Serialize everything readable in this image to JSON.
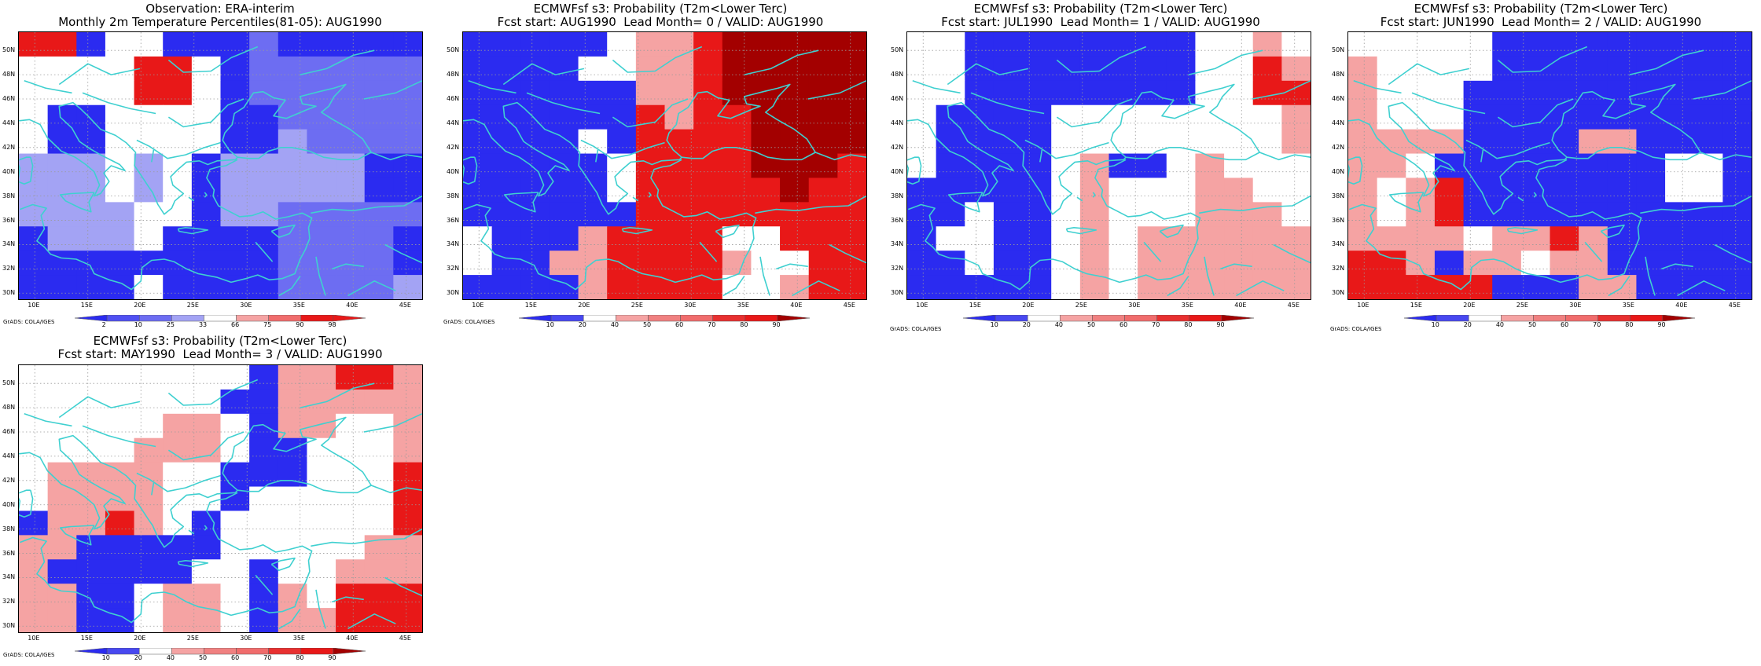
{
  "colors": {
    "coastline": "#3fd0d0",
    "grid": "#9a9a9a",
    "blue_strong": "#2b2bf0",
    "blue_mid": "#6d6df2",
    "blue_light": "#a3a3f4",
    "white": "#ffffff",
    "red_light": "#f5a3a3",
    "red_mid": "#f06c6c",
    "red_bright": "#e81818",
    "red_dark": "#a30000"
  },
  "icons": [
    "triangle-left-icon",
    "triangle-right-icon"
  ],
  "credit": "GrADS: COLA/IGES",
  "x_ticks": [
    "10E",
    "15E",
    "20E",
    "25E",
    "30E",
    "35E",
    "40E",
    "45E"
  ],
  "y_ticks": [
    "50N",
    "48N",
    "46N",
    "44N",
    "42N",
    "40N",
    "38N",
    "36N",
    "34N",
    "32N",
    "30N"
  ],
  "legend_obs": {
    "labels": [
      "2",
      "10",
      "25",
      "33",
      "66",
      "75",
      "90",
      "98"
    ],
    "colors": [
      "#2b2bf0",
      "#5050f2",
      "#6d6df2",
      "#a3a3f4",
      "#ffffff",
      "#f5a3a3",
      "#f06c6c",
      "#e81818",
      "#e81818"
    ]
  },
  "legend_prob": {
    "labels": [
      "10",
      "20",
      "40",
      "50",
      "60",
      "70",
      "80",
      "90"
    ],
    "colors": [
      "#2b2bf0",
      "#4848f0",
      "#ffffff",
      "#f5a3a3",
      "#f08080",
      "#f06c6c",
      "#e83030",
      "#e81818",
      "#a30000"
    ]
  },
  "panels": [
    {
      "id": "obs",
      "title1": "Observation: ERA-interim",
      "title2": "Monthly 2m Temperature Percentiles(81-05): AUG1990",
      "legend": "legend_obs",
      "grid": [
        "RRB00BBBMBBBBB",
        "0000RR0BMMMMMM",
        "0000RR0BMMMMMM",
        "0BB0000BBMMMMM",
        "0BB0000BBLMMMM",
        "LLL0L0BLLLLLBB",
        "LLL0L0BLLLLLBB",
        "LLLL00BLLMMMMM",
        "BLLL0BBBBMMMMB",
        "BBBBBBBBBMMMMB",
        "BBBB0BBBBMMMML"
      ]
    },
    {
      "id": "lead0",
      "title1": "ECMWFsf s3: Probability (T2m<Lower Terc)",
      "title2": "Fcst start: AUG1990  Lead Month= 0 / VALID: AUG1990",
      "legend": "legend_prob",
      "grid": [
        "BBBBB0rrRDDDDD",
        "BBBB00rrRDDDDD",
        "BBBBBBrrRDDDDD",
        "BBBBBBRrRRDDDD",
        "BBBB0BRRRRDDDD",
        "BBBBB0RRRRDDDR",
        "BBBBB0RRRRRDRR",
        "BBBBBBRRRRRRRR",
        "0BBBrRRRR00RRR",
        "0BBrrRRRRr00RR",
        "BBBBrRRRR00rRR"
      ]
    },
    {
      "id": "lead1",
      "title1": "ECMWFsf s3: Probability (T2m<Lower Terc)",
      "title2": "Fcst start: JUL1990  Lead Month= 1 / VALID: AUG1990",
      "legend": "legend_prob",
      "grid": [
        "00BBBBBBBB00r0",
        "00BBBBBBBB00Rr",
        "00BBBBBBBB00RR",
        "0BBBB00000000r",
        "0BBBB00000000r",
        "0BBBB0rBB0r000",
        "BBBBB0r000rr00",
        "BB0BB0r000rrr0",
        "B00BB0r0rrrrrr",
        "BB0BB0r0rrrrrr",
        "BBBBB0r0rrrrrr"
      ]
    },
    {
      "id": "lead2",
      "title1": "ECMWFsf s3: Probability (T2m<Lower Terc)",
      "title2": "Fcst start: JUN1990  Lead Month= 2 / VALID: AUG1990",
      "legend": "legend_prob",
      "grid": [
        "00000BBBBBBBBB",
        "r0000BBBBBBBBB",
        "r000BBBBBBBBBB",
        "r000BBBBBBBBBB",
        "rrrrBBBBrrBBBB",
        "rr0BBBBBBBB00B",
        "r0rRBBBBBBB00B",
        "r0rRBBBBBBBBBB",
        "rrrr0rrRrBBBBB",
        "RRrBrr0rrBBBBB",
        "RRRRRBBBrrBBBB"
      ]
    },
    {
      "id": "lead3",
      "title1": "ECMWFsf s3: Probability (T2m<Lower Terc)",
      "title2": "Fcst start: MAY1990  Lead Month= 3 / VALID: AUG1990",
      "legend": "legend_prob",
      "grid": [
        "00000000BrrRRr",
        "0000000BBrrrrr",
        "00000rr0Brr00r",
        "0000rrr0BB000r",
        "0rrrr00BBB000R",
        "0rrrr00B00000R",
        "BrrRr0B000000R",
        "rrBBBBB00000rr",
        "rBBBBB00B00rrr",
        "rrBB0rr0Br0RRR",
        "rrBB0rr0BrrRRR"
      ]
    }
  ]
}
